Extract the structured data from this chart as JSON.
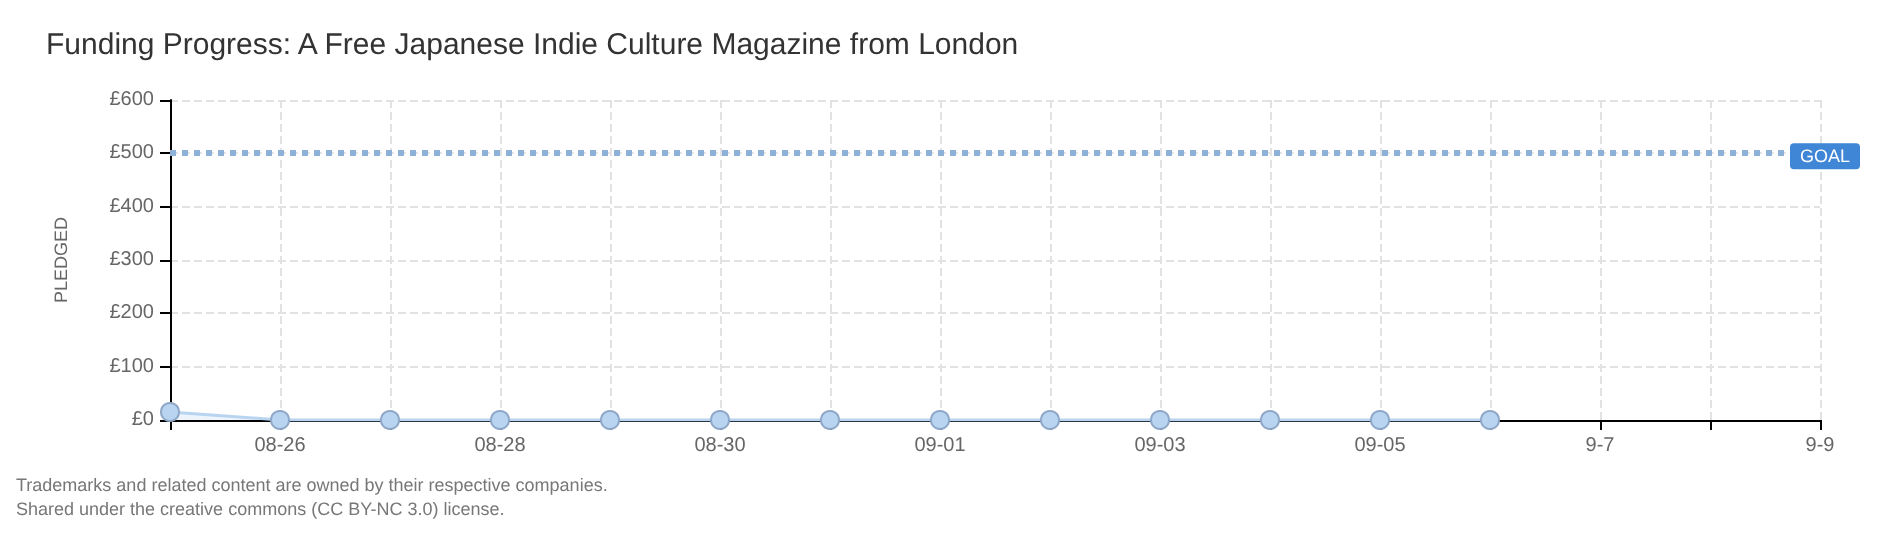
{
  "chart_data": {
    "type": "area",
    "title": "Funding Progress: A Free Japanese Indie Culture Magazine from London",
    "ylabel": "PLEDGED",
    "categories": [
      null,
      "08-26",
      null,
      "08-28",
      null,
      "08-30",
      null,
      "09-01",
      null,
      "09-03",
      null,
      "09-05",
      null,
      "9-7",
      null,
      "9-9"
    ],
    "series": [
      {
        "color": "#b8d4f0",
        "values": [
          15,
          0,
          0,
          0,
          0,
          0,
          0,
          0,
          0,
          0,
          0,
          0,
          0,
          null,
          null,
          null
        ]
      }
    ],
    "ylim": [
      0,
      600
    ],
    "yticks": [
      {
        "value": 0,
        "label": "£0"
      },
      {
        "value": 100,
        "label": "£100"
      },
      {
        "value": 200,
        "label": "£200"
      },
      {
        "value": 300,
        "label": "£300"
      },
      {
        "value": 400,
        "label": "£400"
      },
      {
        "value": 500,
        "label": "£500"
      },
      {
        "value": 600,
        "label": "£600"
      }
    ],
    "ref_lines": [
      {
        "axis": "y",
        "value": 500,
        "label": "GOAL",
        "color": "#8fb0d8",
        "line_style": "dotted"
      }
    ],
    "annotations": [
      "Trademarks and related content are owned by their respective companies.",
      "Shared under the creative commons (CC BY-NC 3.0) license."
    ],
    "grid": true,
    "marker": "circle"
  }
}
